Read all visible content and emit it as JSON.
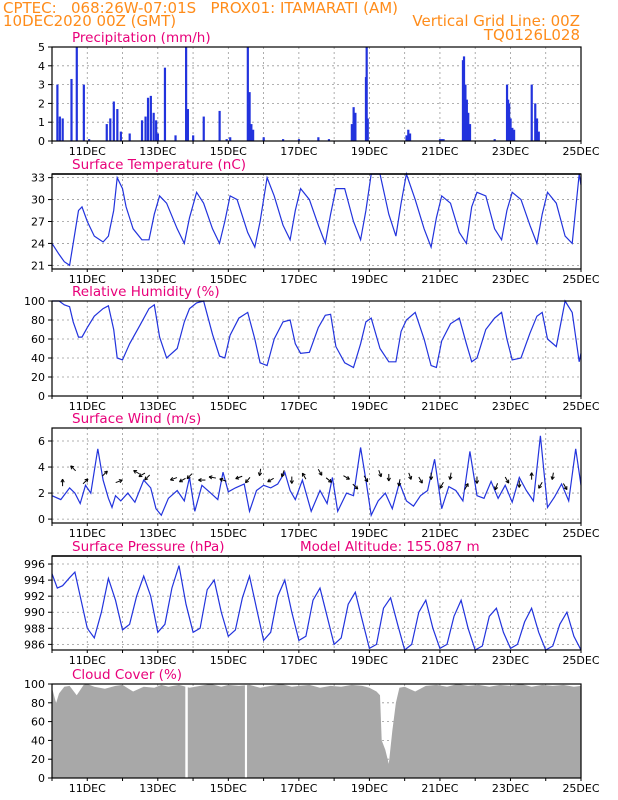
{
  "header": {
    "line1_left": "CPTEC:   068:26W-07:01S   PROX01: ITAMARATI (AM)",
    "line2_left": "10DEC2020 00Z (GMT)",
    "line2_right": "Vertical Grid Line: 00Z",
    "line3_right": "TQ0126L028",
    "color": "#ff8c1a"
  },
  "colors": {
    "title": "#e8007a",
    "series": "#2233dd",
    "cloud": "#a8a8a8",
    "grid": "#999999",
    "arrow": "#000000"
  },
  "x_axis": {
    "start_day": 10,
    "end_day": 25,
    "tick_labels": [
      "11DEC",
      "13DEC",
      "15DEC",
      "17DEC",
      "19DEC",
      "21DEC",
      "23DEC",
      "25DEC"
    ],
    "tick_days": [
      11,
      13,
      15,
      17,
      19,
      21,
      23,
      25
    ]
  },
  "chart_data": [
    {
      "id": "precip",
      "type": "bar",
      "title": "Precipitation (mm/h)",
      "ylim": [
        0,
        5
      ],
      "yticks": [
        "0",
        "1",
        "2",
        "3",
        "4",
        "5"
      ],
      "x": [
        10.15,
        10.22,
        10.3,
        10.55,
        10.7,
        10.9,
        11.05,
        11.55,
        11.65,
        11.75,
        11.85,
        11.95,
        12.2,
        12.55,
        12.65,
        12.72,
        12.8,
        12.88,
        12.95,
        13.0,
        13.2,
        13.5,
        13.8,
        13.85,
        14.0,
        14.3,
        14.75,
        14.95,
        15.05,
        15.55,
        15.6,
        15.65,
        15.7,
        16.0,
        16.55,
        17.0,
        17.55,
        17.85,
        18.5,
        18.55,
        18.6,
        18.9,
        18.92,
        18.95,
        20.05,
        20.1,
        20.15,
        21.0,
        21.05,
        21.1,
        21.65,
        21.68,
        21.72,
        21.76,
        21.8,
        21.85,
        22.55,
        22.9,
        22.93,
        22.96,
        23.0,
        23.05,
        23.1,
        23.6,
        23.7,
        23.75,
        23.8
      ],
      "values": [
        3.0,
        1.3,
        1.2,
        3.3,
        5.0,
        3.0,
        0.1,
        0.9,
        1.2,
        2.1,
        1.7,
        0.5,
        0.4,
        1.1,
        1.3,
        2.3,
        2.4,
        1.5,
        1.1,
        0.4,
        3.9,
        0.3,
        5.0,
        1.7,
        0.3,
        1.3,
        1.6,
        0.1,
        0.2,
        5.0,
        2.6,
        0.9,
        0.6,
        0.2,
        0.1,
        0.1,
        0.2,
        0.1,
        0.9,
        1.8,
        1.5,
        3.4,
        5.0,
        1.2,
        0.3,
        0.6,
        0.4,
        0.1,
        0.1,
        0.1,
        4.3,
        4.5,
        3.0,
        2.2,
        1.5,
        0.9,
        0.1,
        3.0,
        2.2,
        2.0,
        1.2,
        0.7,
        0.6,
        3.0,
        2.0,
        1.2,
        0.5
      ]
    },
    {
      "id": "temp",
      "type": "line",
      "title": "Surface Temperature (nC)",
      "ylim": [
        20.5,
        33.5
      ],
      "yticks": [
        "21",
        "24",
        "27",
        "30",
        "33"
      ],
      "x": [
        10.0,
        10.2,
        10.35,
        10.5,
        10.6,
        10.75,
        10.85,
        11.0,
        11.2,
        11.45,
        11.6,
        11.75,
        11.85,
        12.0,
        12.1,
        12.3,
        12.55,
        12.75,
        12.9,
        13.05,
        13.25,
        13.55,
        13.75,
        13.9,
        14.1,
        14.3,
        14.55,
        14.75,
        14.9,
        15.05,
        15.25,
        15.55,
        15.75,
        15.9,
        16.1,
        16.3,
        16.55,
        16.75,
        16.9,
        17.05,
        17.3,
        17.55,
        17.75,
        17.9,
        18.05,
        18.3,
        18.55,
        18.75,
        18.9,
        19.05,
        19.3,
        19.55,
        19.75,
        19.9,
        20.05,
        20.3,
        20.55,
        20.75,
        20.9,
        21.05,
        21.3,
        21.55,
        21.75,
        21.9,
        22.05,
        22.3,
        22.55,
        22.75,
        22.9,
        23.05,
        23.3,
        23.55,
        23.75,
        23.9,
        24.05,
        24.3,
        24.55,
        24.75,
        24.95,
        25.0
      ],
      "values": [
        24.0,
        22.5,
        21.5,
        21.0,
        24.0,
        28.5,
        29.0,
        27.0,
        25.0,
        24.2,
        25.0,
        28.5,
        33.0,
        31.5,
        29.0,
        26.0,
        24.5,
        24.5,
        28.0,
        30.5,
        29.5,
        26.0,
        24.0,
        27.5,
        31.0,
        29.5,
        26.0,
        24.0,
        27.0,
        30.5,
        30.0,
        25.5,
        23.5,
        27.0,
        33.0,
        30.5,
        26.5,
        24.5,
        28.5,
        31.5,
        30.0,
        26.5,
        24.0,
        28.0,
        31.5,
        31.5,
        27.0,
        24.5,
        28.5,
        33.5,
        33.5,
        28.0,
        25.0,
        29.5,
        33.5,
        30.0,
        26.0,
        23.5,
        27.5,
        30.5,
        29.5,
        25.5,
        24.0,
        29.0,
        31.0,
        30.5,
        26.0,
        24.5,
        28.5,
        31.0,
        30.0,
        26.5,
        24.0,
        28.0,
        31.0,
        29.5,
        25.0,
        24.0,
        33.5,
        32.0
      ]
    },
    {
      "id": "rh",
      "type": "line",
      "title": "Relative Humidity (%)",
      "ylim": [
        0,
        100
      ],
      "yticks": [
        "0",
        "20",
        "40",
        "60",
        "80",
        "100"
      ],
      "x": [
        10.0,
        10.2,
        10.35,
        10.5,
        10.6,
        10.75,
        10.85,
        11.0,
        11.2,
        11.45,
        11.6,
        11.75,
        11.85,
        12.0,
        12.2,
        12.5,
        12.75,
        12.9,
        13.05,
        13.25,
        13.55,
        13.75,
        13.9,
        14.1,
        14.3,
        14.55,
        14.75,
        14.9,
        15.05,
        15.3,
        15.55,
        15.75,
        15.9,
        16.1,
        16.3,
        16.55,
        16.75,
        16.9,
        17.05,
        17.3,
        17.55,
        17.75,
        17.9,
        18.05,
        18.3,
        18.55,
        18.75,
        18.9,
        19.05,
        19.3,
        19.55,
        19.75,
        19.9,
        20.05,
        20.3,
        20.55,
        20.75,
        20.9,
        21.05,
        21.3,
        21.55,
        21.75,
        21.9,
        22.05,
        22.3,
        22.55,
        22.75,
        22.9,
        23.05,
        23.3,
        23.55,
        23.75,
        23.9,
        24.05,
        24.3,
        24.55,
        24.75,
        24.95,
        25.0
      ],
      "values": [
        100,
        100,
        96,
        94,
        78,
        62,
        62,
        72,
        84,
        92,
        95,
        70,
        40,
        38,
        55,
        75,
        92,
        96,
        62,
        40,
        50,
        78,
        92,
        98,
        100,
        65,
        42,
        40,
        64,
        82,
        88,
        60,
        35,
        32,
        60,
        78,
        80,
        55,
        45,
        46,
        72,
        85,
        86,
        52,
        35,
        30,
        55,
        78,
        82,
        50,
        36,
        36,
        68,
        80,
        88,
        60,
        32,
        30,
        58,
        76,
        82,
        55,
        36,
        40,
        70,
        82,
        88,
        60,
        38,
        40,
        66,
        84,
        88,
        60,
        52,
        100,
        88,
        36,
        45
      ]
    },
    {
      "id": "wind",
      "type": "line",
      "title": "Surface Wind (m/s)",
      "ylim": [
        -0.3,
        7.0
      ],
      "yticks": [
        "0",
        "2",
        "4",
        "6"
      ],
      "x": [
        10.0,
        10.25,
        10.5,
        10.65,
        10.8,
        10.95,
        11.1,
        11.3,
        11.45,
        11.6,
        11.7,
        11.8,
        11.95,
        12.15,
        12.35,
        12.6,
        12.8,
        12.95,
        13.1,
        13.3,
        13.55,
        13.75,
        13.9,
        14.05,
        14.25,
        14.5,
        14.7,
        14.85,
        15.0,
        15.2,
        15.45,
        15.6,
        15.8,
        16.0,
        16.2,
        16.4,
        16.6,
        16.75,
        16.9,
        17.1,
        17.35,
        17.6,
        17.8,
        17.95,
        18.1,
        18.35,
        18.55,
        18.75,
        18.9,
        19.05,
        19.25,
        19.45,
        19.65,
        19.85,
        20.05,
        20.25,
        20.45,
        20.65,
        20.85,
        21.05,
        21.25,
        21.45,
        21.65,
        21.85,
        22.05,
        22.25,
        22.45,
        22.65,
        22.85,
        23.05,
        23.25,
        23.45,
        23.65,
        23.85,
        24.05,
        24.25,
        24.45,
        24.65,
        24.85,
        25.0
      ],
      "values": [
        1.8,
        1.5,
        2.4,
        2.0,
        1.2,
        2.6,
        2.0,
        5.4,
        3.0,
        1.6,
        0.9,
        1.8,
        1.4,
        2.0,
        1.3,
        3.0,
        2.4,
        0.8,
        0.3,
        1.6,
        2.2,
        1.4,
        3.2,
        0.6,
        2.6,
        2.0,
        1.5,
        3.6,
        2.1,
        2.4,
        2.7,
        0.6,
        2.2,
        2.6,
        2.4,
        2.7,
        3.6,
        2.2,
        1.5,
        3.0,
        0.6,
        2.2,
        1.2,
        3.2,
        0.6,
        2.0,
        1.8,
        5.5,
        3.0,
        0.3,
        1.4,
        2.0,
        0.8,
        2.8,
        1.4,
        1.0,
        1.8,
        2.2,
        4.6,
        0.8,
        2.5,
        2.2,
        1.4,
        5.2,
        1.8,
        1.6,
        2.9,
        1.6,
        2.6,
        1.3,
        3.2,
        2.2,
        1.4,
        6.4,
        0.9,
        1.7,
        2.7,
        1.4,
        5.4,
        2.6
      ]
    },
    {
      "id": "pres",
      "type": "line",
      "title": "Surface Pressure (hPa)",
      "annotation": "Model Altitude: 155.087 m",
      "ylim": [
        985.3,
        997.0
      ],
      "yticks": [
        "986",
        "988",
        "990",
        "992",
        "994",
        "996"
      ],
      "x": [
        10.0,
        10.15,
        10.3,
        10.5,
        10.65,
        10.8,
        11.0,
        11.2,
        11.4,
        11.6,
        11.8,
        12.0,
        12.2,
        12.4,
        12.6,
        12.8,
        13.0,
        13.2,
        13.4,
        13.6,
        13.8,
        14.0,
        14.2,
        14.4,
        14.6,
        14.8,
        15.0,
        15.2,
        15.4,
        15.6,
        15.8,
        16.0,
        16.2,
        16.4,
        16.6,
        16.8,
        17.0,
        17.2,
        17.4,
        17.6,
        17.8,
        18.0,
        18.2,
        18.4,
        18.6,
        18.8,
        19.0,
        19.2,
        19.4,
        19.6,
        19.8,
        20.0,
        20.2,
        20.4,
        20.6,
        20.8,
        21.0,
        21.2,
        21.4,
        21.6,
        21.8,
        22.0,
        22.2,
        22.4,
        22.6,
        22.8,
        23.0,
        23.2,
        23.4,
        23.6,
        23.8,
        24.0,
        24.2,
        24.4,
        24.6,
        24.8,
        25.0
      ],
      "values": [
        994.8,
        993.0,
        993.3,
        994.3,
        995.0,
        992.0,
        988.0,
        986.8,
        990.0,
        994.2,
        991.5,
        987.8,
        988.5,
        992.0,
        994.5,
        992.0,
        987.5,
        988.5,
        993.0,
        995.8,
        991.0,
        987.5,
        988.0,
        992.8,
        994.0,
        990.0,
        987.0,
        987.8,
        991.8,
        994.5,
        990.5,
        986.5,
        987.5,
        992.0,
        994.0,
        990.0,
        986.5,
        987.0,
        991.5,
        993.0,
        989.5,
        986.0,
        986.8,
        991.0,
        992.5,
        989.0,
        985.5,
        986.0,
        990.5,
        991.8,
        988.5,
        985.3,
        986.0,
        990.0,
        991.5,
        988.0,
        985.5,
        986.0,
        989.5,
        991.5,
        988.0,
        985.3,
        985.8,
        989.5,
        990.5,
        987.5,
        985.5,
        986.0,
        988.8,
        990.5,
        987.5,
        985.3,
        985.8,
        988.5,
        990.0,
        987.0,
        985.3
      ]
    },
    {
      "id": "cloud",
      "type": "area",
      "title": "Cloud Cover (%)",
      "ylim": [
        0,
        100
      ],
      "yticks": [
        "0",
        "20",
        "40",
        "60",
        "80",
        "100"
      ],
      "x": [
        10.0,
        10.1,
        10.12,
        10.2,
        10.35,
        10.5,
        10.7,
        10.9,
        11.0,
        11.2,
        11.5,
        11.8,
        12.0,
        12.3,
        12.6,
        12.9,
        13.1,
        13.3,
        13.6,
        13.9,
        14.2,
        14.5,
        14.8,
        15.0,
        15.3,
        15.6,
        15.9,
        16.2,
        16.5,
        16.8,
        17.0,
        17.3,
        17.6,
        17.9,
        18.2,
        18.5,
        18.8,
        19.0,
        19.2,
        19.3,
        19.35,
        19.45,
        19.55,
        19.65,
        19.75,
        19.85,
        20.0,
        20.3,
        20.6,
        20.9,
        21.2,
        21.5,
        21.8,
        22.1,
        22.4,
        22.7,
        23.0,
        23.3,
        23.6,
        23.9,
        24.2,
        24.5,
        24.8,
        25.0
      ],
      "values": [
        96,
        82,
        80,
        90,
        97,
        98,
        88,
        99,
        100,
        97,
        95,
        98,
        99,
        92,
        97,
        96,
        99,
        97,
        99,
        96,
        98,
        100,
        97,
        99,
        98,
        99,
        96,
        98,
        100,
        97,
        98,
        99,
        96,
        98,
        97,
        99,
        98,
        96,
        92,
        88,
        40,
        30,
        15,
        50,
        80,
        96,
        97,
        92,
        98,
        99,
        97,
        100,
        98,
        99,
        97,
        99,
        98,
        100,
        97,
        99,
        98,
        99,
        97,
        98
      ]
    }
  ],
  "wind_arrows": {
    "x": [
      10.3,
      10.6,
      10.95,
      11.5,
      11.9,
      12.4,
      12.55,
      12.7,
      13.45,
      13.7,
      13.9,
      14.25,
      14.55,
      14.85,
      15.3,
      15.55,
      15.9,
      16.2,
      16.55,
      16.8,
      17.15,
      17.6,
      17.85,
      18.35,
      18.6,
      18.9,
      19.3,
      19.55,
      19.85,
      20.15,
      20.45,
      20.75,
      21.05,
      21.3,
      21.75,
      22.05,
      22.6,
      22.9,
      23.25,
      23.6,
      23.85,
      24.2,
      24.55
    ],
    "speed": [
      2.8,
      3.9,
      2.9,
      3.5,
      2.9,
      3.6,
      3.4,
      3.2,
      3.1,
      3.0,
      3.3,
      3.0,
      3.2,
      3.0,
      3.2,
      3.0,
      3.6,
      3.0,
      3.5,
      3.0,
      3.3,
      3.6,
      3.0,
      3.2,
      2.5,
      3.1,
      3.5,
      3.2,
      2.8,
      3.3,
      3.0,
      3.3,
      2.6,
      3.3,
      2.5,
      3.0,
      2.5,
      3.0,
      2.7,
      3.3,
      2.6,
      3.3,
      2.5
    ],
    "dir_deg": [
      90,
      135,
      45,
      45,
      20,
      150,
      210,
      225,
      200,
      210,
      225,
      180,
      170,
      160,
      200,
      230,
      260,
      210,
      250,
      270,
      120,
      300,
      320,
      330,
      315,
      300,
      290,
      270,
      260,
      290,
      300,
      270,
      240,
      260,
      60,
      270,
      250,
      300,
      270,
      90,
      240,
      260,
      300
    ]
  }
}
